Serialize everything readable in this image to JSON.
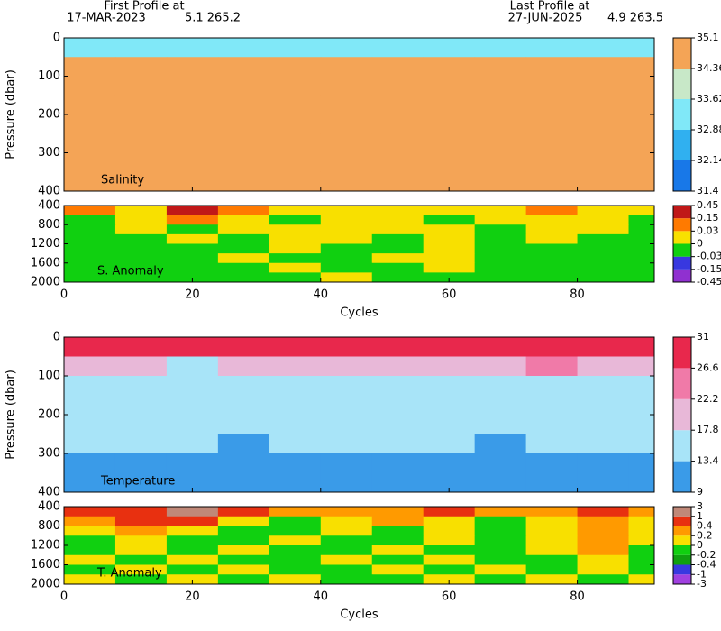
{
  "header": {
    "first_label": "First Profile at",
    "first_date": "17-MAR-2023",
    "first_pos": "5.1 265.2",
    "last_label": "Last Profile at",
    "last_date": "27-JUN-2025",
    "last_pos": "4.9 263.5"
  },
  "chart_data": [
    {
      "type": "heatmap",
      "label": "Salinity",
      "ylabel": "Pressure (dbar)",
      "x_edges": [
        0,
        8,
        16,
        24,
        32,
        40,
        48,
        56,
        64,
        72,
        80,
        88,
        92
      ],
      "y_edges": [
        0,
        50,
        100,
        150,
        200,
        250,
        300,
        350,
        400
      ],
      "xlim": [
        0,
        92
      ],
      "ylim": [
        0,
        400
      ],
      "xticks": [
        0,
        20,
        40,
        60,
        80
      ],
      "yticks": [
        0,
        100,
        200,
        300,
        400
      ],
      "cbar_ticks": [
        31.4,
        32.14,
        32.88,
        33.62,
        34.36,
        35.1
      ],
      "cbar_colors": [
        "#1878e8",
        "#30b0f0",
        "#80e8f8",
        "#c8e8c8",
        "#f4a456"
      ],
      "values": [
        [
          33.0,
          32.9,
          33.2,
          33.0,
          33.1,
          33.0,
          32.9,
          33.1,
          33.0,
          33.2,
          33.1,
          33.0
        ],
        [
          34.6,
          34.7,
          34.5,
          34.7,
          34.6,
          34.7,
          34.6,
          34.5,
          34.6,
          34.7,
          34.6,
          34.6
        ],
        [
          34.9,
          34.8,
          34.9,
          34.9,
          34.8,
          34.9,
          34.9,
          34.8,
          34.9,
          34.9,
          34.8,
          34.9
        ],
        [
          34.9,
          34.9,
          34.9,
          34.8,
          34.9,
          34.9,
          34.8,
          34.9,
          34.9,
          34.8,
          34.9,
          34.9
        ],
        [
          34.9,
          34.9,
          34.8,
          34.9,
          34.9,
          34.9,
          34.9,
          34.9,
          34.8,
          34.9,
          34.9,
          34.9
        ],
        [
          34.9,
          34.9,
          34.9,
          34.9,
          34.9,
          34.8,
          34.9,
          34.9,
          34.9,
          34.9,
          34.9,
          34.8
        ],
        [
          35.0,
          34.9,
          34.9,
          34.9,
          35.0,
          34.9,
          34.9,
          35.0,
          34.9,
          34.9,
          35.0,
          34.9
        ],
        [
          35.0,
          35.0,
          35.0,
          35.0,
          35.0,
          35.0,
          35.0,
          35.0,
          35.0,
          35.0,
          35.0,
          35.0
        ]
      ]
    },
    {
      "type": "heatmap",
      "label": "S. Anomaly",
      "xlabel": "Cycles",
      "x_edges": [
        0,
        8,
        16,
        24,
        32,
        40,
        48,
        56,
        64,
        72,
        80,
        88,
        92
      ],
      "y_edges": [
        400,
        600,
        800,
        1000,
        1200,
        1400,
        1600,
        1800,
        2000
      ],
      "xlim": [
        0,
        92
      ],
      "ylim": [
        400,
        2000
      ],
      "xticks": [
        0,
        20,
        40,
        60,
        80
      ],
      "yticks": [
        400,
        800,
        1200,
        1600,
        2000
      ],
      "cbar_ticks": [
        -0.45,
        -0.15,
        -0.03,
        0,
        0.03,
        0.15,
        0.45
      ],
      "cbar_colors": [
        "#9030d0",
        "#3838e0",
        "#10d010",
        "#f8e000",
        "#ff7a00",
        "#c01818"
      ],
      "values": [
        [
          0.05,
          0.02,
          0.2,
          0.04,
          0.01,
          0.02,
          0.01,
          0.02,
          0.01,
          0.04,
          0.02,
          0.01
        ],
        [
          -0.01,
          0.01,
          0.04,
          0.01,
          -0.01,
          0.01,
          0.01,
          -0.01,
          0.01,
          0.02,
          0.01,
          -0.01
        ],
        [
          -0.01,
          0.01,
          -0.01,
          0.01,
          0.01,
          0.02,
          0.01,
          0.01,
          -0.01,
          0.01,
          0.01,
          -0.01
        ],
        [
          -0.02,
          -0.01,
          0.01,
          -0.01,
          0.01,
          0.01,
          -0.01,
          0.01,
          -0.01,
          0.01,
          -0.01,
          -0.02
        ],
        [
          -0.02,
          -0.01,
          -0.01,
          -0.02,
          0.01,
          -0.01,
          -0.01,
          0.01,
          -0.02,
          -0.01,
          -0.01,
          -0.02
        ],
        [
          -0.01,
          -0.02,
          -0.01,
          0.01,
          -0.01,
          -0.02,
          0.01,
          0.01,
          -0.01,
          -0.02,
          -0.01,
          -0.01
        ],
        [
          -0.02,
          -0.01,
          -0.02,
          -0.01,
          0.01,
          -0.01,
          -0.01,
          0.01,
          -0.02,
          -0.01,
          -0.02,
          -0.01
        ],
        [
          -0.01,
          -0.02,
          -0.01,
          -0.02,
          -0.01,
          0.01,
          -0.02,
          -0.01,
          -0.01,
          -0.02,
          -0.01,
          -0.02
        ]
      ]
    },
    {
      "type": "heatmap",
      "label": "Temperature",
      "ylabel": "Pressure (dbar)",
      "x_edges": [
        0,
        8,
        16,
        24,
        32,
        40,
        48,
        56,
        64,
        72,
        80,
        88,
        92
      ],
      "y_edges": [
        0,
        50,
        100,
        150,
        200,
        250,
        300,
        350,
        400
      ],
      "xlim": [
        0,
        92
      ],
      "ylim": [
        0,
        400
      ],
      "xticks": [
        0,
        20,
        40,
        60,
        80
      ],
      "yticks": [
        0,
        100,
        200,
        300,
        400
      ],
      "cbar_ticks": [
        9,
        13.4,
        17.8,
        22.2,
        26.6,
        31
      ],
      "cbar_colors": [
        "#3a9be8",
        "#a8e4f8",
        "#e8b8d8",
        "#f07aa8",
        "#e8284c"
      ],
      "values": [
        [
          29,
          28,
          29,
          28.5,
          29,
          28.5,
          29,
          28,
          29,
          29.5,
          29,
          28.5
        ],
        [
          18.5,
          19,
          17.5,
          18,
          19,
          20,
          19,
          18,
          19,
          24,
          22,
          19
        ],
        [
          15.5,
          15,
          15.5,
          16,
          15.5,
          16,
          15,
          15.5,
          16,
          16.5,
          16,
          15.5
        ],
        [
          14.5,
          14.5,
          14,
          14.5,
          15,
          14.5,
          14.5,
          14,
          14.5,
          15,
          14.5,
          14.5
        ],
        [
          14,
          13.9,
          14,
          13.8,
          14,
          14.2,
          13.9,
          14,
          13.8,
          14,
          14.1,
          13.9
        ],
        [
          13.6,
          13.5,
          13.5,
          13.2,
          13.6,
          13.5,
          13.7,
          13.5,
          13.3,
          13.6,
          13.5,
          13.6
        ],
        [
          12.8,
          13,
          12.6,
          12.4,
          12.8,
          12.7,
          12.9,
          13,
          12.6,
          12.8,
          12.5,
          12.8
        ],
        [
          11.5,
          11.4,
          11.6,
          11.2,
          11.5,
          11.6,
          11.4,
          11.5,
          11.3,
          11.6,
          11.4,
          11.5
        ]
      ]
    },
    {
      "type": "heatmap",
      "label": "T. Anomaly",
      "xlabel": "Cycles",
      "x_edges": [
        0,
        8,
        16,
        24,
        32,
        40,
        48,
        56,
        64,
        72,
        80,
        88,
        92
      ],
      "y_edges": [
        400,
        600,
        800,
        1000,
        1200,
        1400,
        1600,
        1800,
        2000
      ],
      "xlim": [
        0,
        92
      ],
      "ylim": [
        400,
        2000
      ],
      "xticks": [
        0,
        20,
        40,
        60,
        80
      ],
      "yticks": [
        400,
        800,
        1200,
        1600,
        2000
      ],
      "cbar_ticks": [
        -3,
        -1,
        -0.4,
        -0.2,
        0,
        0.2,
        0.4,
        1,
        3
      ],
      "cbar_colors": [
        "#a040e0",
        "#3838e0",
        "#10a010",
        "#10d010",
        "#f8e000",
        "#ff9a00",
        "#e83010",
        "#c08878"
      ],
      "values": [
        [
          0.6,
          0.9,
          1.2,
          0.5,
          0.3,
          0.25,
          0.3,
          0.5,
          0.3,
          0.25,
          0.5,
          0.3
        ],
        [
          0.3,
          0.5,
          0.6,
          0.1,
          -0.1,
          0.1,
          0.3,
          0.1,
          -0.1,
          0.1,
          0.3,
          0.1
        ],
        [
          0.1,
          0.3,
          0.1,
          -0.1,
          -0.1,
          0.1,
          -0.1,
          0.1,
          -0.1,
          0.1,
          0.3,
          0.1
        ],
        [
          -0.1,
          0.1,
          -0.1,
          -0.1,
          0.1,
          -0.1,
          -0.1,
          0.1,
          -0.1,
          0.1,
          0.25,
          0.1
        ],
        [
          -0.1,
          0.1,
          -0.1,
          0.1,
          -0.1,
          -0.1,
          0.1,
          -0.1,
          -0.1,
          0.1,
          0.25,
          -0.1
        ],
        [
          0.1,
          -0.1,
          0.1,
          -0.1,
          -0.1,
          0.1,
          -0.1,
          0.1,
          -0.1,
          -0.1,
          0.1,
          -0.1
        ],
        [
          -0.1,
          0.1,
          -0.1,
          0.1,
          -0.1,
          -0.1,
          0.1,
          -0.1,
          0.1,
          -0.1,
          0.1,
          -0.1
        ],
        [
          0.1,
          -0.1,
          0.1,
          -0.1,
          0.1,
          -0.1,
          -0.1,
          0.1,
          -0.1,
          0.1,
          -0.1,
          0.1
        ]
      ]
    }
  ]
}
